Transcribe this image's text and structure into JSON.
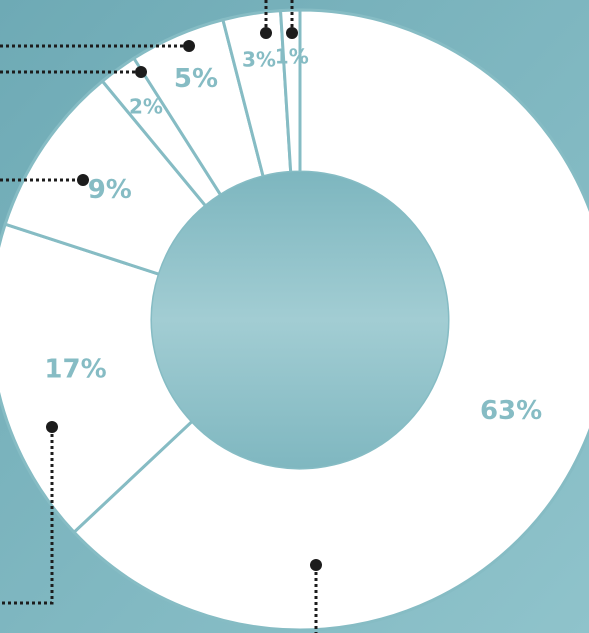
{
  "chart_data": {
    "type": "pie",
    "categories": [
      null,
      null,
      null,
      null,
      null,
      null,
      null
    ],
    "values": [
      63,
      17,
      9,
      2,
      5,
      3,
      1
    ],
    "value_labels": [
      "63%",
      "17%",
      "9%",
      "2%",
      "5%",
      "3%",
      "1%"
    ],
    "color": "#ffffff",
    "donut": true
  }
}
